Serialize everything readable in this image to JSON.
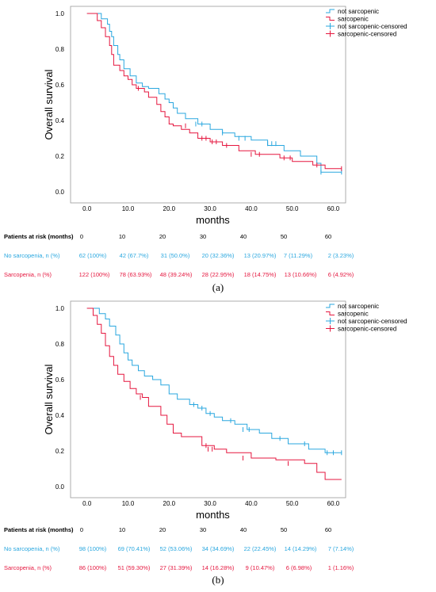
{
  "colors": {
    "not_sarcopenic": "#2aa7df",
    "sarcopenic": "#e5173f"
  },
  "risk_table_columns": [
    "0",
    "10",
    "20",
    "30",
    "40",
    "50",
    "60"
  ],
  "chart_data": [
    {
      "type": "line",
      "caption": "(a)",
      "xlabel": "months",
      "ylabel": "Overall survival",
      "xlim": [
        -4,
        63
      ],
      "ylim": [
        0,
        1
      ],
      "x_ticks": [
        "0.0",
        "10.0",
        "20.0",
        "30.0",
        "40.0",
        "50.0",
        "60.0"
      ],
      "y_ticks": [
        "0.0",
        "0.2",
        "0.4",
        "0.6",
        "0.8",
        "1.0"
      ],
      "legend": [
        "not sarcopenic",
        "sarcopenic",
        "not sarcopenic-censored",
        "sarcopenic-censored"
      ],
      "legend_position": "top-right",
      "series": [
        {
          "name": "not sarcopenic",
          "x": [
            0,
            3.5,
            5,
            5.5,
            6,
            6.5,
            7.5,
            8,
            9,
            10.5,
            12,
            13.5,
            15,
            17.5,
            19,
            20,
            21,
            22,
            24,
            27,
            30,
            33,
            36,
            40,
            44,
            48,
            52,
            56,
            57
          ],
          "y": [
            1.0,
            0.97,
            0.94,
            0.9,
            0.87,
            0.82,
            0.77,
            0.74,
            0.69,
            0.65,
            0.61,
            0.59,
            0.58,
            0.55,
            0.52,
            0.5,
            0.47,
            0.44,
            0.41,
            0.38,
            0.35,
            0.33,
            0.31,
            0.29,
            0.26,
            0.23,
            0.2,
            0.16,
            0.11
          ],
          "censored_x": [
            26.5,
            28,
            33,
            37,
            38.5,
            44,
            45,
            46,
            57,
            62
          ],
          "censored_y": [
            0.38,
            0.38,
            0.33,
            0.3,
            0.3,
            0.27,
            0.27,
            0.27,
            0.11,
            0.11
          ]
        },
        {
          "name": "sarcopenic",
          "x": [
            0,
            2.5,
            3.5,
            4.5,
            5.5,
            6,
            6.5,
            8,
            9,
            10,
            11,
            12,
            14,
            15,
            17,
            18,
            19,
            20,
            21,
            23,
            25,
            27,
            30,
            33,
            37,
            41,
            47,
            50,
            55,
            58
          ],
          "y": [
            1.0,
            0.96,
            0.92,
            0.87,
            0.82,
            0.77,
            0.71,
            0.68,
            0.65,
            0.63,
            0.6,
            0.58,
            0.56,
            0.53,
            0.49,
            0.45,
            0.42,
            0.38,
            0.37,
            0.35,
            0.33,
            0.3,
            0.28,
            0.26,
            0.23,
            0.21,
            0.19,
            0.17,
            0.15,
            0.13
          ],
          "censored_x": [
            12.5,
            24,
            28,
            29,
            30.5,
            31.5,
            34,
            40,
            42,
            48,
            49.5,
            56,
            62
          ],
          "censored_y": [
            0.58,
            0.37,
            0.3,
            0.3,
            0.28,
            0.28,
            0.26,
            0.21,
            0.21,
            0.19,
            0.19,
            0.15,
            0.13
          ]
        }
      ],
      "risk_table": {
        "header": "Patients at risk (months)",
        "rows": [
          {
            "label": "No sarcopenia, n (%)",
            "values": [
              "62 (100%)",
              "42 (67.7%)",
              "31 (50.0%)",
              "20 (32.36%)",
              "13 (20.97%)",
              "7 (11.29%)",
              "2 (3.23%)"
            ]
          },
          {
            "label": "Sarcopenia, n (%)",
            "values": [
              "122 (100%)",
              "78 (63.93%)",
              "48 (39.24%)",
              "28 (22.95%)",
              "18 (14.75%)",
              "13 (10.66%)",
              "6 (4.92%)"
            ]
          }
        ]
      }
    },
    {
      "type": "line",
      "caption": "(b)",
      "xlabel": "months",
      "ylabel": "Overall survival",
      "xlim": [
        -4,
        63
      ],
      "ylim": [
        0,
        1
      ],
      "x_ticks": [
        "0.0",
        "10.0",
        "20.0",
        "30.0",
        "40.0",
        "50.0",
        "60.0"
      ],
      "y_ticks": [
        "0.0",
        "0.2",
        "0.4",
        "0.6",
        "0.8",
        "1.0"
      ],
      "legend": [
        "not sarcopenic",
        "sarcopenic",
        "not sarcopenic-censored",
        "sarcopenic-censored"
      ],
      "legend_position": "top-right",
      "series": [
        {
          "name": "not sarcopenic",
          "x": [
            0,
            3,
            4.5,
            5.5,
            7,
            8,
            9,
            10,
            11,
            12.5,
            14,
            16,
            18,
            20,
            22,
            25,
            27,
            29,
            31,
            33,
            36,
            39,
            42,
            45,
            49,
            54,
            58
          ],
          "y": [
            1.0,
            0.97,
            0.94,
            0.9,
            0.85,
            0.8,
            0.75,
            0.71,
            0.68,
            0.65,
            0.62,
            0.6,
            0.57,
            0.52,
            0.49,
            0.46,
            0.44,
            0.41,
            0.39,
            0.37,
            0.35,
            0.32,
            0.3,
            0.27,
            0.24,
            0.21,
            0.19
          ],
          "censored_x": [
            26,
            28,
            30,
            35,
            38,
            39.5,
            47,
            53,
            58.5,
            60,
            62
          ],
          "censored_y": [
            0.46,
            0.44,
            0.41,
            0.37,
            0.32,
            0.32,
            0.27,
            0.24,
            0.19,
            0.19,
            0.19
          ]
        },
        {
          "name": "sarcopenic",
          "x": [
            0,
            1.5,
            2.5,
            3.5,
            4.5,
            5.5,
            6.5,
            7.5,
            9,
            10.5,
            12,
            13.5,
            15,
            18,
            19.5,
            21,
            23,
            28,
            31,
            34,
            40,
            46,
            53,
            56,
            58
          ],
          "y": [
            1.0,
            0.96,
            0.91,
            0.86,
            0.79,
            0.73,
            0.68,
            0.63,
            0.59,
            0.55,
            0.52,
            0.5,
            0.45,
            0.4,
            0.35,
            0.3,
            0.28,
            0.23,
            0.21,
            0.19,
            0.16,
            0.15,
            0.13,
            0.08,
            0.04
          ],
          "censored_x": [
            13,
            29,
            29.5,
            30.5,
            38,
            49
          ],
          "censored_y": [
            0.5,
            0.23,
            0.21,
            0.21,
            0.16,
            0.13
          ]
        }
      ],
      "risk_table": {
        "header": "Patients at risk (months)",
        "rows": [
          {
            "label": "No sarcopenia, n (%)",
            "values": [
              "98 (100%)",
              "69 (70.41%)",
              "52 (53.06%)",
              "34 (34.69%)",
              "22 (22.45%)",
              "14 (14.29%)",
              "7 (7.14%)"
            ]
          },
          {
            "label": "Sarcopenia, n (%)",
            "values": [
              "86 (100%)",
              "51 (59.30%)",
              "27 (31.39%)",
              "14 (16.28%)",
              "9 (10.47%)",
              "6 (6.98%)",
              "1 (1.16%)"
            ]
          }
        ]
      }
    }
  ]
}
